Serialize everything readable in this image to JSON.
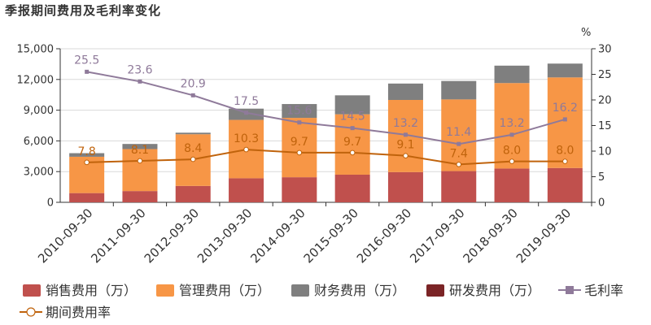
{
  "title": "季报期间费用及毛利率变化",
  "colors": {
    "sales": "#c0504d",
    "mgmt": "#f79646",
    "fin": "#7f7f7f",
    "rd": "#7b2426",
    "gross_margin": "#8f7a9a",
    "period_rate": "#c0630c",
    "axis": "#333333",
    "grid": "#d9d9d9"
  },
  "chart_data": {
    "type": "bar",
    "stacked": true,
    "categories": [
      "2010-09-30",
      "2011-09-30",
      "2012-09-30",
      "2013-09-30",
      "2014-09-30",
      "2015-09-30",
      "2016-09-30",
      "2017-09-30",
      "2018-09-30",
      "2019-09-30"
    ],
    "series": [
      {
        "name": "销售费用（万）",
        "type": "bar",
        "axis": "left",
        "values": [
          900,
          1100,
          1600,
          2350,
          2450,
          2700,
          2950,
          3050,
          3300,
          3350
        ]
      },
      {
        "name": "管理费用（万）",
        "type": "bar",
        "axis": "left",
        "values": [
          3550,
          4100,
          5050,
          5700,
          5800,
          5900,
          7050,
          7000,
          8350,
          8850
        ]
      },
      {
        "name": "财务费用（万）",
        "type": "bar",
        "axis": "left",
        "values": [
          350,
          500,
          150,
          1100,
          1350,
          1850,
          1600,
          1800,
          1700,
          1350
        ]
      },
      {
        "name": "研发费用（万）",
        "type": "bar",
        "axis": "left",
        "values": [
          0,
          0,
          0,
          0,
          0,
          0,
          0,
          0,
          0,
          0
        ]
      },
      {
        "name": "毛利率",
        "type": "line",
        "axis": "right",
        "values": [
          25.5,
          23.6,
          20.9,
          17.5,
          15.6,
          14.5,
          13.2,
          11.4,
          13.2,
          16.2
        ],
        "labels": [
          "25.5",
          "23.6",
          "20.9",
          "17.5",
          "15.6",
          "14.5",
          "13.2",
          "11.4",
          "13.2",
          "16.2"
        ]
      },
      {
        "name": "期间费用率",
        "type": "line",
        "axis": "right",
        "values": [
          7.8,
          8.1,
          8.4,
          10.3,
          9.7,
          9.7,
          9.1,
          7.4,
          8.0,
          8.0
        ],
        "labels": [
          "7.8",
          "8.1",
          "8.4",
          "10.3",
          "9.7",
          "9.7",
          "9.1",
          "7.4",
          "8.0",
          "8.0"
        ]
      }
    ],
    "y_left": {
      "ylim": [
        0,
        15000
      ],
      "ticks": [
        "0",
        "3,000",
        "6,000",
        "9,000",
        "12,000",
        "15,000"
      ]
    },
    "y_right": {
      "ylim": [
        0,
        30
      ],
      "ticks": [
        "0",
        "5",
        "10",
        "15",
        "20",
        "25",
        "30"
      ],
      "unit": "%"
    },
    "grid": true,
    "legend_position": "bottom"
  }
}
